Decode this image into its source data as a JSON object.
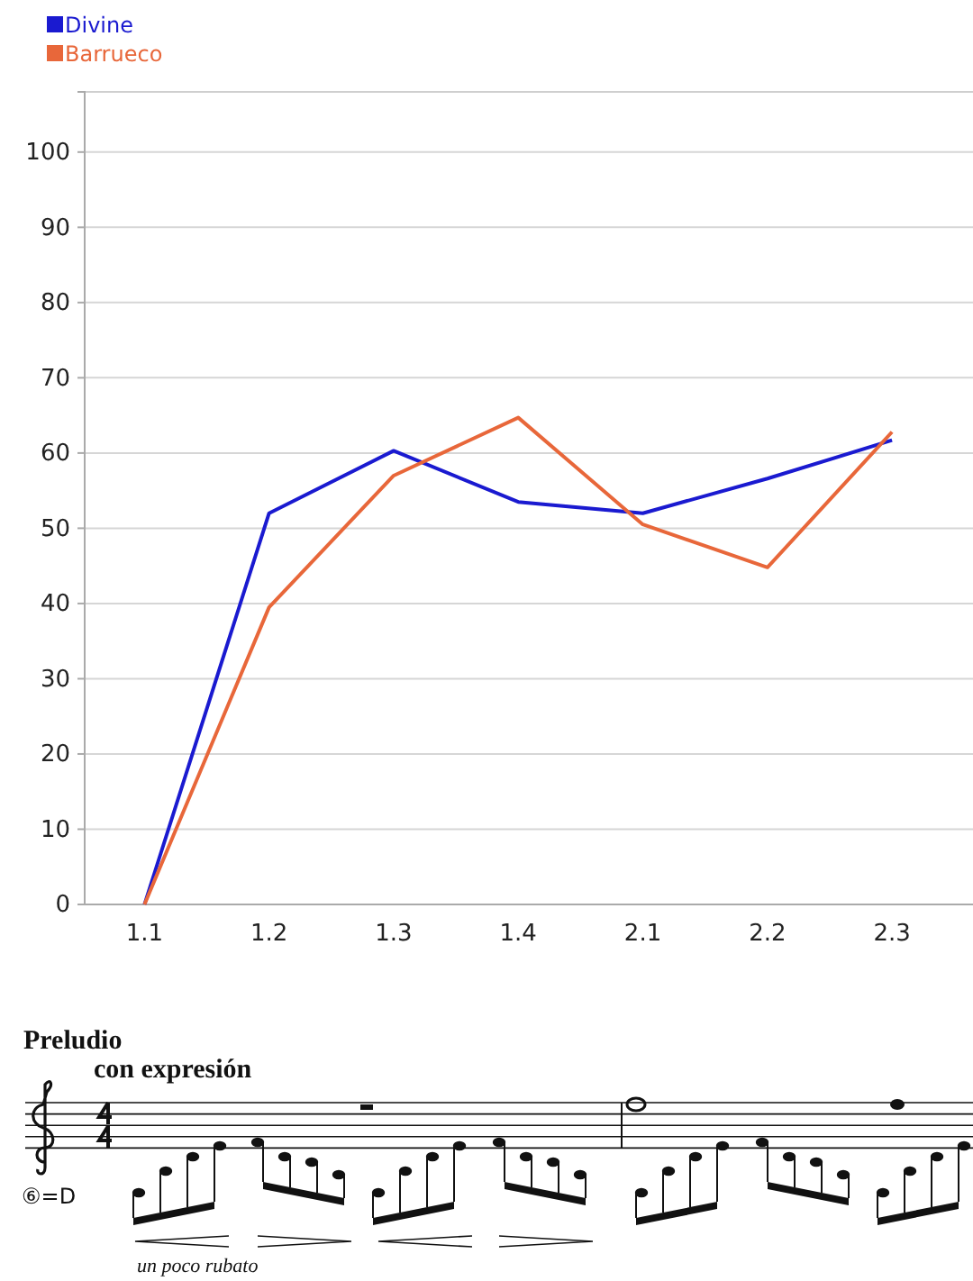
{
  "chart_data": {
    "type": "line",
    "categories": [
      "1.1",
      "1.2",
      "1.3",
      "1.4",
      "2.1",
      "2.2",
      "2.3"
    ],
    "series": [
      {
        "name": "Divine",
        "color": "#1a1ad0",
        "values": [
          0,
          52,
          60.3,
          53.5,
          52,
          56.6,
          61.7
        ]
      },
      {
        "name": "Barrueco",
        "color": "#e8673a",
        "values": [
          0,
          39.5,
          57,
          64.7,
          50.5,
          44.8,
          62.8
        ]
      }
    ],
    "ylim": [
      0,
      108
    ],
    "yticks": [
      0,
      10,
      20,
      30,
      40,
      50,
      60,
      70,
      80,
      90,
      100
    ],
    "grid": "y",
    "legend": "top left",
    "marker": "none",
    "line_style": "solid",
    "annotations": [
      "Preludio",
      "con expresión",
      "⑥=D",
      "un poco rubato"
    ]
  }
}
